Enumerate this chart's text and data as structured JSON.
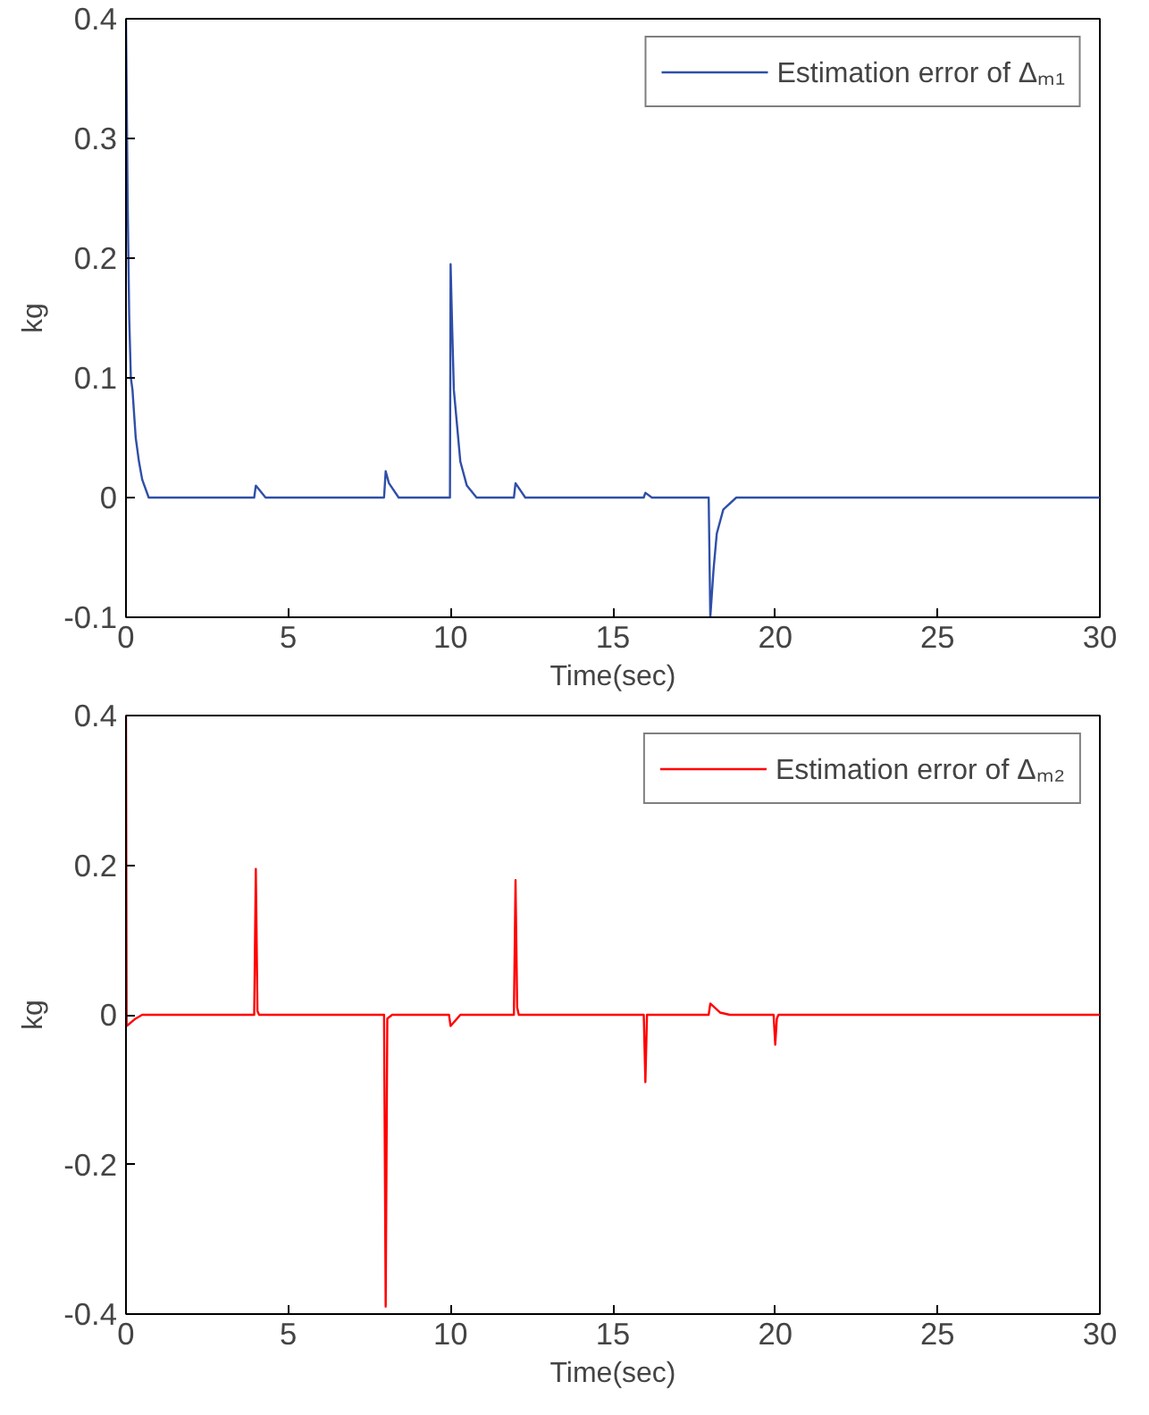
{
  "chart_data": [
    {
      "type": "line",
      "xlabel": "Time(sec)",
      "ylabel": "kg",
      "xlim": [
        0,
        30
      ],
      "ylim": [
        -0.1,
        0.4
      ],
      "xticks": [
        0,
        5,
        10,
        15,
        20,
        25,
        30
      ],
      "yticks": [
        -0.1,
        0,
        0.1,
        0.2,
        0.3,
        0.4
      ],
      "grid": false,
      "legend": "top right",
      "line_style": "solid",
      "series": [
        {
          "name": "Estimation error of Δₘ₁",
          "color": "#2f4fa8",
          "x": [
            0,
            0.05,
            0.1,
            0.15,
            0.2,
            0.3,
            0.4,
            0.5,
            0.7,
            3.95,
            4.0,
            4.3,
            7.95,
            8.0,
            8.1,
            8.4,
            9.98,
            10.0,
            10.05,
            10.1,
            10.2,
            10.3,
            10.5,
            10.8,
            11.95,
            12.0,
            12.3,
            15.95,
            16.0,
            16.2,
            17.95,
            18.0,
            18.1,
            18.2,
            18.4,
            18.8,
            30
          ],
          "values": [
            0.4,
            0.25,
            0.15,
            0.1,
            0.09,
            0.05,
            0.03,
            0.015,
            0,
            0,
            0.01,
            0,
            0,
            0.022,
            0.012,
            0,
            0,
            0.195,
            0.14,
            0.09,
            0.06,
            0.03,
            0.01,
            0,
            0,
            0.012,
            0,
            0,
            0.004,
            0,
            0,
            -0.1,
            -0.06,
            -0.03,
            -0.01,
            0,
            0
          ]
        }
      ]
    },
    {
      "type": "line",
      "xlabel": "Time(sec)",
      "ylabel": "kg",
      "xlim": [
        0,
        30
      ],
      "ylim": [
        -0.4,
        0.4
      ],
      "xticks": [
        0,
        5,
        10,
        15,
        20,
        25,
        30
      ],
      "yticks": [
        -0.4,
        -0.2,
        0,
        0.2,
        0.4
      ],
      "grid": false,
      "legend": "top right",
      "line_style": "solid",
      "series": [
        {
          "name": "Estimation error of Δₘ₂",
          "color": "#ff0000",
          "x": [
            0,
            0.02,
            0.3,
            0.5,
            3.95,
            4.0,
            4.05,
            4.1,
            7.95,
            8.0,
            8.05,
            8.2,
            9.95,
            10.0,
            10.3,
            11.95,
            12.0,
            12.05,
            12.1,
            15.95,
            16.0,
            16.05,
            17.95,
            18.0,
            18.3,
            18.6,
            19.95,
            20.0,
            20.05,
            20.1,
            30
          ],
          "values": [
            0.4,
            -0.015,
            -0.005,
            0,
            0,
            0.195,
            0.005,
            0,
            0,
            -0.39,
            -0.005,
            0,
            0,
            -0.015,
            0,
            0,
            0.18,
            0.01,
            0,
            0,
            -0.09,
            0,
            0,
            0.015,
            0.003,
            0,
            0,
            -0.04,
            -0.005,
            0,
            0
          ]
        }
      ]
    }
  ]
}
